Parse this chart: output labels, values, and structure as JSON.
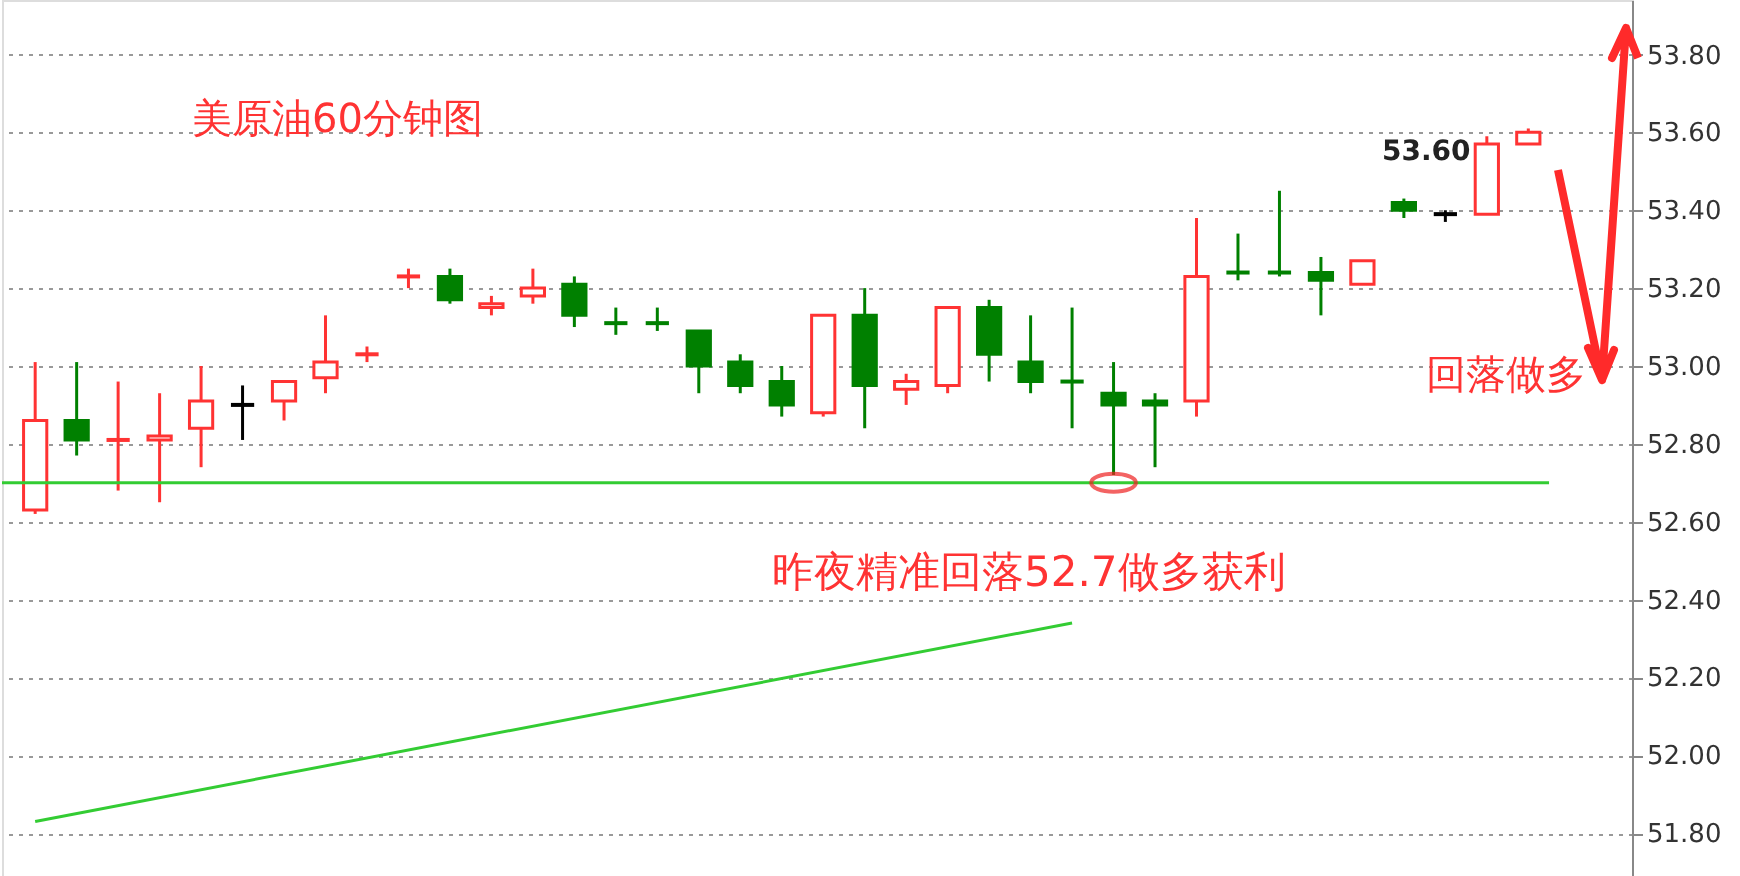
{
  "chart_data": {
    "type": "candlestick",
    "title": "美原油60分钟图",
    "categories": [
      null,
      null,
      null,
      null,
      null,
      null,
      null,
      null,
      null,
      null,
      null,
      null,
      null,
      null,
      null,
      null,
      null,
      null,
      null,
      null,
      null,
      null,
      null,
      null,
      null,
      null,
      null,
      null,
      null,
      null,
      null,
      null,
      null,
      null,
      null,
      null,
      null
    ],
    "ohlc": [
      [
        52.63,
        53.01,
        52.62,
        52.86
      ],
      [
        52.86,
        53.01,
        52.77,
        52.81
      ],
      [
        52.81,
        52.96,
        52.68,
        52.81
      ],
      [
        52.81,
        52.93,
        52.65,
        52.82
      ],
      [
        52.84,
        53.0,
        52.74,
        52.91
      ],
      [
        52.9,
        52.95,
        52.81,
        52.9
      ],
      [
        52.91,
        52.96,
        52.86,
        52.96
      ],
      [
        52.97,
        53.13,
        52.93,
        53.01
      ],
      [
        53.03,
        53.05,
        53.01,
        53.03
      ],
      [
        53.23,
        53.25,
        53.2,
        53.23
      ],
      [
        53.23,
        53.25,
        53.16,
        53.17
      ],
      [
        53.15,
        53.18,
        53.13,
        53.16
      ],
      [
        53.18,
        53.25,
        53.16,
        53.2
      ],
      [
        53.21,
        53.23,
        53.1,
        53.13
      ],
      [
        53.11,
        53.15,
        53.08,
        53.11
      ],
      [
        53.11,
        53.15,
        53.09,
        53.11
      ],
      [
        53.09,
        53.09,
        52.93,
        53.0
      ],
      [
        53.01,
        53.03,
        52.93,
        52.95
      ],
      [
        52.96,
        53.0,
        52.87,
        52.9
      ],
      [
        52.88,
        53.13,
        52.87,
        53.13
      ],
      [
        53.13,
        53.2,
        52.84,
        52.95
      ],
      [
        52.94,
        52.98,
        52.9,
        52.96
      ],
      [
        52.95,
        53.15,
        52.93,
        53.15
      ],
      [
        53.15,
        53.17,
        52.96,
        53.03
      ],
      [
        53.01,
        53.13,
        52.93,
        52.96
      ],
      [
        52.96,
        53.15,
        52.84,
        52.96
      ],
      [
        52.93,
        53.01,
        52.72,
        52.9
      ],
      [
        52.91,
        52.93,
        52.74,
        52.9
      ],
      [
        52.91,
        53.38,
        52.87,
        53.23
      ],
      [
        53.24,
        53.34,
        53.22,
        53.24
      ],
      [
        53.24,
        53.45,
        53.23,
        53.24
      ],
      [
        53.24,
        53.28,
        53.13,
        53.22
      ],
      [
        53.21,
        53.27,
        53.21,
        53.27
      ],
      [
        53.42,
        53.43,
        53.38,
        53.4
      ],
      [
        53.39,
        53.4,
        53.37,
        53.39
      ],
      [
        53.39,
        53.59,
        53.39,
        53.57
      ],
      [
        53.57,
        53.61,
        53.57,
        53.6
      ]
    ],
    "colors": [
      "#ff3333",
      "#008000",
      "#ff3333",
      "#ff3333",
      "#ff3333",
      "#000000",
      "#ff3333",
      "#ff3333",
      "#ff3333",
      "#ff3333",
      "#008000",
      "#ff3333",
      "#ff3333",
      "#008000",
      "#008000",
      "#008000",
      "#008000",
      "#008000",
      "#008000",
      "#ff3333",
      "#008000",
      "#ff3333",
      "#ff3333",
      "#008000",
      "#008000",
      "#008000",
      "#008000",
      "#008000",
      "#ff3333",
      "#008000",
      "#008000",
      "#008000",
      "#ff3333",
      "#008000",
      "#000000",
      "#ff3333",
      "#ff3333"
    ],
    "series": [
      {
        "type": "line",
        "color": "#33cc33",
        "values": [
          51.83,
          null,
          null,
          null,
          null,
          null,
          null,
          null,
          null,
          null,
          null,
          null,
          null,
          null,
          null,
          null,
          null,
          null,
          null,
          null,
          null,
          null,
          null,
          null,
          null,
          52.34,
          null,
          null,
          null,
          null,
          null,
          null,
          null,
          null,
          null,
          null,
          null
        ]
      }
    ],
    "ref_lines": [
      {
        "axis": "y",
        "value": 52.7,
        "color": "#33cc33"
      }
    ],
    "annotations": [
      "昨夜精准回落52.7做多获利",
      "回落做多",
      "53.60"
    ],
    "ylim": [
      51.69,
      53.94
    ],
    "yticks": [
      {
        "value": 51.8,
        "label": "51.80"
      },
      {
        "value": 52.0,
        "label": "52.00"
      },
      {
        "value": 52.2,
        "label": "52.20"
      },
      {
        "value": 52.4,
        "label": "52.40"
      },
      {
        "value": 52.6,
        "label": "52.60"
      },
      {
        "value": 52.8,
        "label": "52.80"
      },
      {
        "value": 53.0,
        "label": "53.00"
      },
      {
        "value": 53.2,
        "label": "53.20"
      },
      {
        "value": 53.4,
        "label": "53.40"
      },
      {
        "value": 53.6,
        "label": "53.60"
      },
      {
        "value": 53.8,
        "label": "53.80"
      }
    ],
    "grid": "y"
  }
}
